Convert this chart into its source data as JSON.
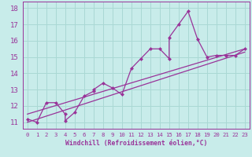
{
  "xlabel": "Windchill (Refroidissement éolien,°C)",
  "bg_color": "#c8ecea",
  "line_color": "#993399",
  "grid_color": "#aad8d4",
  "data_x": [
    0,
    1,
    2,
    3,
    4,
    4,
    5,
    6,
    7,
    7,
    8,
    9,
    10,
    11,
    12,
    13,
    14,
    15,
    15,
    16,
    17,
    18,
    19,
    20,
    21,
    22,
    23
  ],
  "data_y": [
    11.2,
    11.0,
    12.2,
    12.2,
    11.5,
    11.1,
    11.6,
    12.6,
    12.9,
    13.0,
    13.4,
    13.1,
    12.7,
    14.3,
    14.9,
    15.5,
    15.5,
    14.9,
    16.2,
    17.0,
    17.8,
    16.1,
    15.0,
    15.1,
    15.1,
    15.1,
    15.5
  ],
  "trend1_x": [
    0,
    23
  ],
  "trend1_y": [
    11.5,
    15.5
  ],
  "trend2_x": [
    0,
    23
  ],
  "trend2_y": [
    11.0,
    15.3
  ],
  "ylim": [
    10.6,
    18.4
  ],
  "xlim": [
    -0.5,
    23.5
  ],
  "yticks": [
    11,
    12,
    13,
    14,
    15,
    16,
    17,
    18
  ],
  "xticks": [
    0,
    1,
    2,
    3,
    4,
    5,
    6,
    7,
    8,
    9,
    10,
    11,
    12,
    13,
    14,
    15,
    16,
    17,
    18,
    19,
    20,
    21,
    22,
    23
  ],
  "xlabel_fontsize": 5.8,
  "ytick_fontsize": 6.5,
  "xtick_fontsize": 5.2
}
